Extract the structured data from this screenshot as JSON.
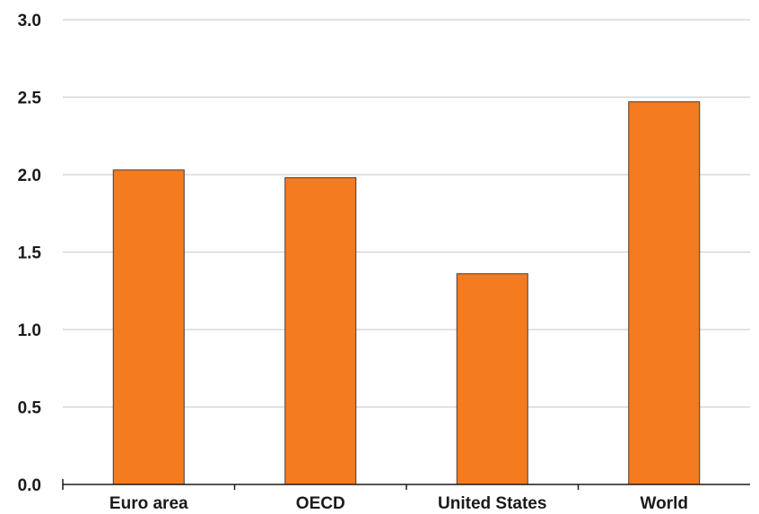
{
  "chart_data": {
    "type": "bar",
    "title": "",
    "xlabel": "",
    "ylabel": "",
    "categories": [
      "Euro area",
      "OECD",
      "United States",
      "World"
    ],
    "values": [
      2.03,
      1.98,
      1.36,
      2.47
    ],
    "ylim": [
      0,
      3.0
    ],
    "yticks": [
      0.0,
      0.5,
      1.0,
      1.5,
      2.0,
      2.5,
      3.0
    ],
    "ytick_labels": [
      "0.0",
      "0.5",
      "1.0",
      "1.5",
      "2.0",
      "2.5",
      "3.0"
    ],
    "grid": true,
    "legend": "none",
    "bar_color": "#f47b20",
    "bar_edge_color": "#4a3a30",
    "grid_color": "#d0d0d0",
    "axis_color": "#1a1a1a"
  }
}
